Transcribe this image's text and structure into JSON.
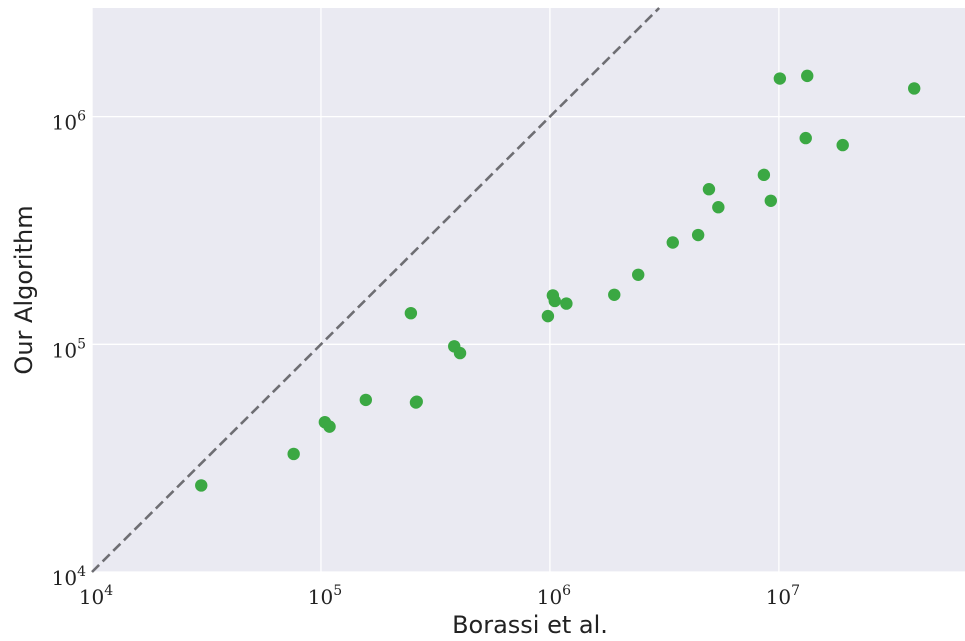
{
  "chart_data": {
    "type": "scatter",
    "xlabel": "Borassi et al.",
    "ylabel": "Our Algorithm",
    "xscale": "log",
    "yscale": "log",
    "xlim": [
      10000,
      65000000
    ],
    "ylim": [
      10000,
      3000000
    ],
    "grid": true,
    "x_ticks": [
      {
        "value": 10000,
        "base": "10",
        "exp": "4"
      },
      {
        "value": 100000,
        "base": "10",
        "exp": "5"
      },
      {
        "value": 1000000,
        "base": "10",
        "exp": "6"
      },
      {
        "value": 10000000,
        "base": "10",
        "exp": "7"
      }
    ],
    "y_ticks": [
      {
        "value": 10000,
        "base": "10",
        "exp": "4"
      },
      {
        "value": 100000,
        "base": "10",
        "exp": "5"
      },
      {
        "value": 1000000,
        "base": "10",
        "exp": "6"
      }
    ],
    "reference_line": {
      "style": "dashed",
      "color": "#6e6e73",
      "relation": "y = x"
    },
    "colors": {
      "background": "#eaeaf2",
      "grid": "#ffffff",
      "points": "#3ba843"
    },
    "points": [
      {
        "x": 30000,
        "y": 24000
      },
      {
        "x": 76000,
        "y": 33000
      },
      {
        "x": 104000,
        "y": 45500
      },
      {
        "x": 109000,
        "y": 43500
      },
      {
        "x": 157000,
        "y": 57000
      },
      {
        "x": 247000,
        "y": 137000
      },
      {
        "x": 260000,
        "y": 55500
      },
      {
        "x": 262000,
        "y": 56000
      },
      {
        "x": 382000,
        "y": 98000
      },
      {
        "x": 405000,
        "y": 91500
      },
      {
        "x": 980000,
        "y": 133000
      },
      {
        "x": 1030000,
        "y": 164000
      },
      {
        "x": 1050000,
        "y": 155000
      },
      {
        "x": 1180000,
        "y": 151000
      },
      {
        "x": 1910000,
        "y": 165000
      },
      {
        "x": 2430000,
        "y": 202000
      },
      {
        "x": 3440000,
        "y": 280000
      },
      {
        "x": 4440000,
        "y": 302000
      },
      {
        "x": 4950000,
        "y": 480000
      },
      {
        "x": 5440000,
        "y": 400000
      },
      {
        "x": 8600000,
        "y": 555000
      },
      {
        "x": 9220000,
        "y": 427000
      },
      {
        "x": 10100000,
        "y": 1470000
      },
      {
        "x": 13100000,
        "y": 805000
      },
      {
        "x": 13300000,
        "y": 1510000
      },
      {
        "x": 19000000,
        "y": 750000
      },
      {
        "x": 39000000,
        "y": 1330000
      }
    ]
  }
}
